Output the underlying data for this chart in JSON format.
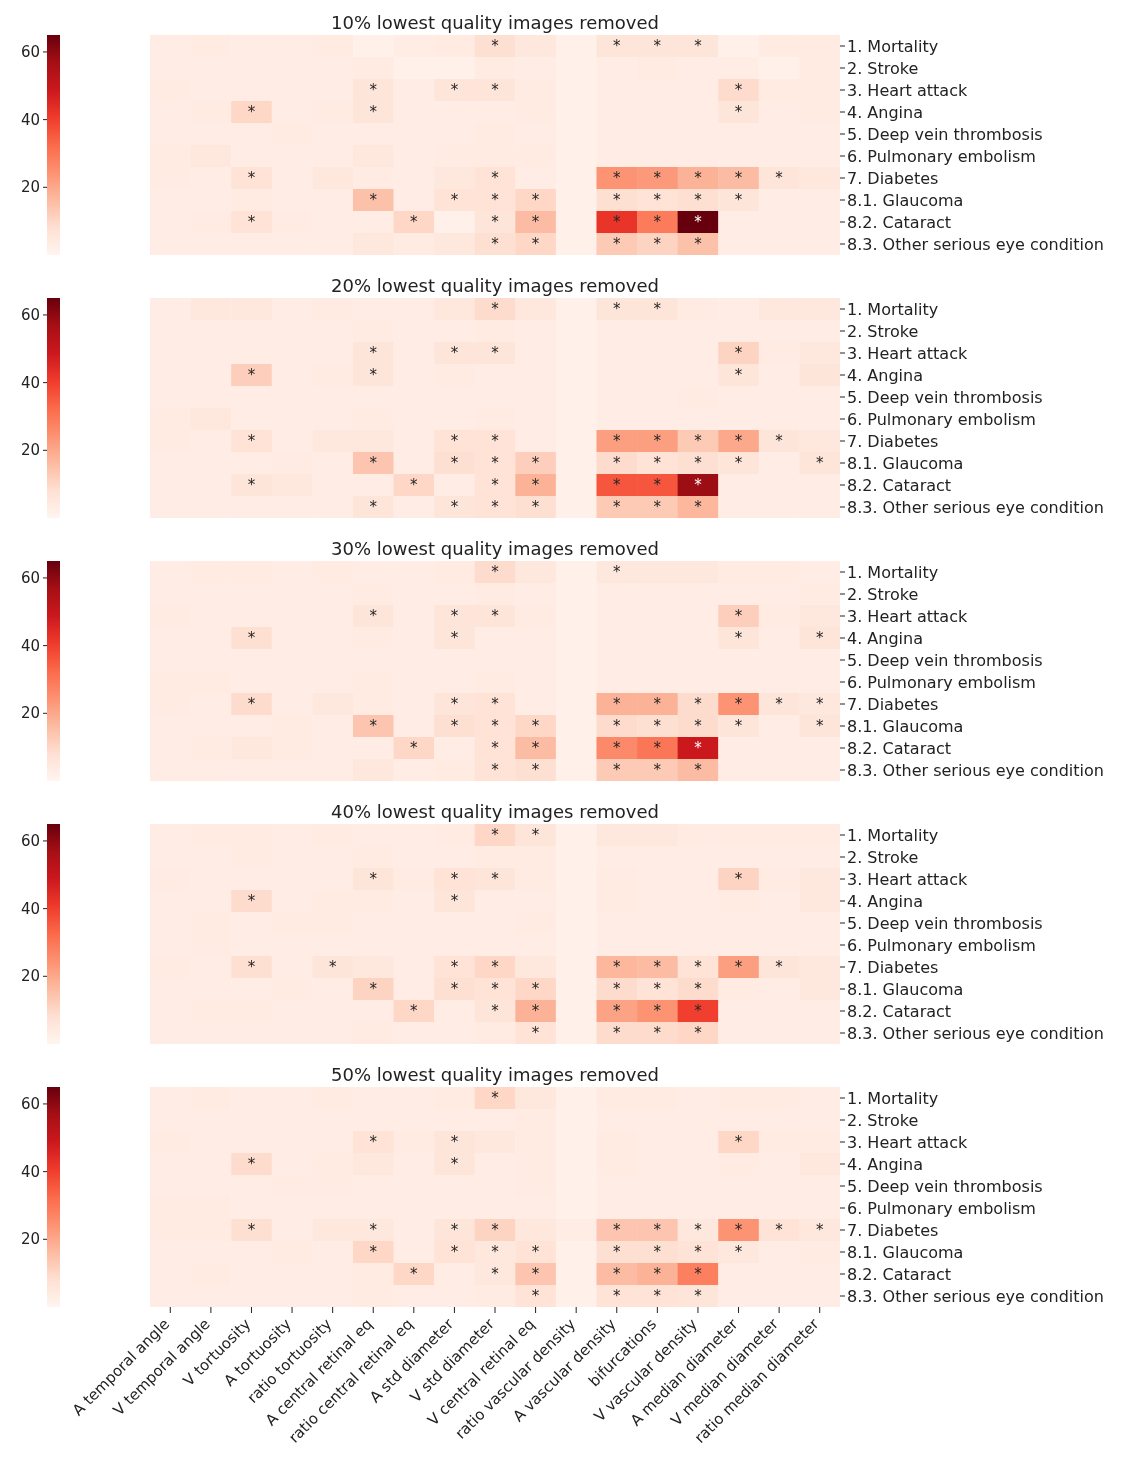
{
  "chart_data": [
    {
      "type": "heatmap",
      "title": "10% lowest quality images removed",
      "tick_labels": "y",
      "categories": [
        null,
        null,
        null,
        null,
        null,
        null,
        null,
        null,
        null,
        null,
        null,
        null,
        null,
        null,
        null,
        null,
        null
      ],
      "y_categories": [
        "1. Mortality",
        "2. Stroke",
        "3. Heart attack",
        "4. Angina",
        "5. Deep vein thrombosis",
        "6. Pulmonary embolism",
        "7. Diabetes",
        "8.1. Glaucoma",
        "8.2. Cataract",
        "8.3. Other serious eye condition"
      ],
      "cells": [
        [
          3,
          4,
          3,
          3,
          4,
          2,
          3,
          4,
          8,
          5,
          2,
          6,
          6,
          6,
          2,
          4,
          4
        ],
        [
          3,
          3,
          3,
          3,
          3,
          4,
          2,
          2,
          4,
          3,
          2,
          3,
          4,
          3,
          3,
          2,
          4
        ],
        [
          4,
          3,
          3,
          3,
          3,
          6,
          3,
          6,
          6,
          4,
          2,
          3,
          3,
          3,
          9,
          4,
          4
        ],
        [
          3,
          4,
          10,
          3,
          4,
          6,
          3,
          3,
          3,
          4,
          2,
          3,
          3,
          3,
          6,
          3,
          4
        ],
        [
          3,
          3,
          3,
          4,
          3,
          3,
          3,
          3,
          4,
          3,
          2,
          3,
          3,
          3,
          3,
          3,
          3
        ],
        [
          4,
          5,
          3,
          3,
          3,
          5,
          3,
          4,
          4,
          4,
          2,
          3,
          3,
          3,
          3,
          3,
          3
        ],
        [
          4,
          3,
          7,
          3,
          5,
          4,
          3,
          5,
          7,
          3,
          2,
          24,
          23,
          18,
          16,
          6,
          5
        ],
        [
          3,
          3,
          4,
          3,
          3,
          15,
          3,
          7,
          7,
          10,
          2,
          8,
          7,
          8,
          6,
          3,
          3
        ],
        [
          3,
          4,
          7,
          4,
          3,
          3,
          10,
          2,
          6,
          16,
          2,
          42,
          29,
          65,
          3,
          3,
          3
        ],
        [
          3,
          3,
          3,
          3,
          3,
          5,
          4,
          5,
          8,
          10,
          2,
          13,
          11,
          15,
          3,
          3,
          3
        ]
      ],
      "cell_labels": [
        [
          null,
          null,
          null,
          null,
          null,
          null,
          null,
          null,
          "*",
          null,
          null,
          "*",
          "*",
          "*",
          null,
          null,
          null
        ],
        [
          null,
          null,
          null,
          null,
          null,
          null,
          null,
          null,
          null,
          null,
          null,
          null,
          null,
          null,
          null,
          null,
          null
        ],
        [
          null,
          null,
          null,
          null,
          null,
          "*",
          null,
          "*",
          "*",
          null,
          null,
          null,
          null,
          null,
          "*",
          null,
          null
        ],
        [
          null,
          null,
          "*",
          null,
          null,
          "*",
          null,
          null,
          null,
          null,
          null,
          null,
          null,
          null,
          "*",
          null,
          null
        ],
        [
          null,
          null,
          null,
          null,
          null,
          null,
          null,
          null,
          null,
          null,
          null,
          null,
          null,
          null,
          null,
          null,
          null
        ],
        [
          null,
          null,
          null,
          null,
          null,
          null,
          null,
          null,
          null,
          null,
          null,
          null,
          null,
          null,
          null,
          null,
          null
        ],
        [
          null,
          null,
          "*",
          null,
          null,
          null,
          null,
          null,
          "*",
          null,
          null,
          "*",
          "*",
          "*",
          "*",
          "*",
          null
        ],
        [
          null,
          null,
          null,
          null,
          null,
          "*",
          null,
          "*",
          "*",
          "*",
          null,
          "*",
          "*",
          "*",
          "*",
          null,
          null
        ],
        [
          null,
          null,
          "*",
          null,
          null,
          null,
          "*",
          null,
          "*",
          "*",
          null,
          "*",
          "*",
          "*",
          null,
          null,
          null
        ],
        [
          null,
          null,
          null,
          null,
          null,
          null,
          null,
          null,
          "*",
          "*",
          null,
          "*",
          "*",
          "*",
          null,
          null,
          null
        ]
      ],
      "clim": [
        0,
        65
      ],
      "cticks": [
        20,
        40,
        60
      ]
    },
    {
      "type": "heatmap",
      "title": "20% lowest quality images removed",
      "tick_labels": "y",
      "categories": [
        null,
        null,
        null,
        null,
        null,
        null,
        null,
        null,
        null,
        null,
        null,
        null,
        null,
        null,
        null,
        null,
        null
      ],
      "y_categories": [
        "1. Mortality",
        "2. Stroke",
        "3. Heart attack",
        "4. Angina",
        "5. Deep vein thrombosis",
        "6. Pulmonary embolism",
        "7. Diabetes",
        "8.1. Glaucoma",
        "8.2. Cataract",
        "8.3. Other serious eye condition"
      ],
      "cells": [
        [
          3,
          5,
          5,
          3,
          4,
          3,
          3,
          5,
          9,
          5,
          2,
          6,
          6,
          4,
          3,
          5,
          5
        ],
        [
          3,
          3,
          3,
          3,
          3,
          4,
          3,
          3,
          4,
          3,
          2,
          3,
          3,
          3,
          3,
          3,
          3
        ],
        [
          3,
          3,
          3,
          3,
          3,
          6,
          3,
          6,
          6,
          3,
          2,
          3,
          3,
          3,
          11,
          4,
          5
        ],
        [
          3,
          3,
          12,
          3,
          4,
          6,
          3,
          4,
          3,
          3,
          2,
          3,
          3,
          3,
          6,
          3,
          6
        ],
        [
          3,
          3,
          3,
          3,
          3,
          3,
          3,
          3,
          3,
          3,
          2,
          3,
          3,
          4,
          3,
          3,
          3
        ],
        [
          4,
          5,
          3,
          3,
          3,
          4,
          3,
          3,
          4,
          3,
          2,
          3,
          3,
          3,
          3,
          3,
          3
        ],
        [
          4,
          3,
          7,
          3,
          5,
          5,
          3,
          7,
          7,
          3,
          2,
          22,
          22,
          13,
          20,
          6,
          5
        ],
        [
          3,
          3,
          3,
          4,
          3,
          14,
          3,
          8,
          7,
          12,
          2,
          9,
          7,
          8,
          6,
          3,
          6
        ],
        [
          3,
          3,
          6,
          5,
          3,
          3,
          10,
          3,
          7,
          18,
          2,
          36,
          36,
          58,
          3,
          3,
          3
        ],
        [
          3,
          3,
          3,
          3,
          3,
          6,
          3,
          6,
          7,
          8,
          2,
          13,
          13,
          17,
          3,
          3,
          3
        ]
      ],
      "cell_labels": [
        [
          null,
          null,
          null,
          null,
          null,
          null,
          null,
          null,
          "*",
          null,
          null,
          "*",
          "*",
          null,
          null,
          null,
          null
        ],
        [
          null,
          null,
          null,
          null,
          null,
          null,
          null,
          null,
          null,
          null,
          null,
          null,
          null,
          null,
          null,
          null,
          null
        ],
        [
          null,
          null,
          null,
          null,
          null,
          "*",
          null,
          "*",
          "*",
          null,
          null,
          null,
          null,
          null,
          "*",
          null,
          null
        ],
        [
          null,
          null,
          "*",
          null,
          null,
          "*",
          null,
          null,
          null,
          null,
          null,
          null,
          null,
          null,
          "*",
          null,
          null
        ],
        [
          null,
          null,
          null,
          null,
          null,
          null,
          null,
          null,
          null,
          null,
          null,
          null,
          null,
          null,
          null,
          null,
          null
        ],
        [
          null,
          null,
          null,
          null,
          null,
          null,
          null,
          null,
          null,
          null,
          null,
          null,
          null,
          null,
          null,
          null,
          null
        ],
        [
          null,
          null,
          "*",
          null,
          null,
          null,
          null,
          "*",
          "*",
          null,
          null,
          "*",
          "*",
          "*",
          "*",
          "*",
          null
        ],
        [
          null,
          null,
          null,
          null,
          null,
          "*",
          null,
          "*",
          "*",
          "*",
          null,
          "*",
          "*",
          "*",
          "*",
          null,
          "*"
        ],
        [
          null,
          null,
          "*",
          null,
          null,
          null,
          "*",
          null,
          "*",
          "*",
          null,
          "*",
          "*",
          "*",
          null,
          null,
          null
        ],
        [
          null,
          null,
          null,
          null,
          null,
          "*",
          null,
          "*",
          "*",
          "*",
          null,
          "*",
          "*",
          "*",
          null,
          null,
          null
        ]
      ],
      "clim": [
        0,
        65
      ],
      "cticks": [
        20,
        40,
        60
      ]
    },
    {
      "type": "heatmap",
      "title": "30% lowest quality images removed",
      "tick_labels": "y",
      "categories": [
        null,
        null,
        null,
        null,
        null,
        null,
        null,
        null,
        null,
        null,
        null,
        null,
        null,
        null,
        null,
        null,
        null
      ],
      "y_categories": [
        "1. Mortality",
        "2. Stroke",
        "3. Heart attack",
        "4. Angina",
        "5. Deep vein thrombosis",
        "6. Pulmonary embolism",
        "7. Diabetes",
        "8.1. Glaucoma",
        "8.2. Cataract",
        "8.3. Other serious eye condition"
      ],
      "cells": [
        [
          3,
          4,
          4,
          3,
          4,
          3,
          3,
          4,
          9,
          5,
          2,
          5,
          5,
          5,
          4,
          4,
          3
        ],
        [
          3,
          3,
          3,
          3,
          3,
          4,
          3,
          3,
          4,
          3,
          2,
          3,
          3,
          3,
          3,
          3,
          4
        ],
        [
          4,
          3,
          3,
          3,
          3,
          6,
          3,
          6,
          6,
          4,
          2,
          3,
          3,
          3,
          12,
          4,
          5
        ],
        [
          3,
          3,
          8,
          3,
          3,
          4,
          3,
          6,
          3,
          3,
          2,
          3,
          3,
          3,
          6,
          3,
          6
        ],
        [
          3,
          3,
          3,
          3,
          3,
          3,
          3,
          3,
          3,
          3,
          2,
          3,
          3,
          3,
          3,
          3,
          3
        ],
        [
          4,
          4,
          3,
          3,
          3,
          4,
          3,
          3,
          4,
          3,
          2,
          3,
          3,
          3,
          3,
          3,
          3
        ],
        [
          4,
          3,
          9,
          3,
          5,
          4,
          3,
          6,
          7,
          3,
          2,
          18,
          18,
          9,
          24,
          6,
          5
        ],
        [
          3,
          3,
          3,
          4,
          3,
          14,
          3,
          8,
          7,
          10,
          2,
          9,
          8,
          9,
          6,
          3,
          6
        ],
        [
          3,
          4,
          5,
          4,
          3,
          3,
          10,
          3,
          7,
          16,
          2,
          26,
          30,
          49,
          3,
          3,
          3
        ],
        [
          3,
          3,
          3,
          3,
          3,
          5,
          3,
          4,
          7,
          8,
          2,
          13,
          13,
          16,
          3,
          3,
          3
        ]
      ],
      "cell_labels": [
        [
          null,
          null,
          null,
          null,
          null,
          null,
          null,
          null,
          "*",
          null,
          null,
          "*",
          null,
          null,
          null,
          null,
          null
        ],
        [
          null,
          null,
          null,
          null,
          null,
          null,
          null,
          null,
          null,
          null,
          null,
          null,
          null,
          null,
          null,
          null,
          null
        ],
        [
          null,
          null,
          null,
          null,
          null,
          "*",
          null,
          "*",
          "*",
          null,
          null,
          null,
          null,
          null,
          "*",
          null,
          null
        ],
        [
          null,
          null,
          "*",
          null,
          null,
          null,
          null,
          "*",
          null,
          null,
          null,
          null,
          null,
          null,
          "*",
          null,
          "*"
        ],
        [
          null,
          null,
          null,
          null,
          null,
          null,
          null,
          null,
          null,
          null,
          null,
          null,
          null,
          null,
          null,
          null,
          null
        ],
        [
          null,
          null,
          null,
          null,
          null,
          null,
          null,
          null,
          null,
          null,
          null,
          null,
          null,
          null,
          null,
          null,
          null
        ],
        [
          null,
          null,
          "*",
          null,
          null,
          null,
          null,
          "*",
          "*",
          null,
          null,
          "*",
          "*",
          "*",
          "*",
          "*",
          "*"
        ],
        [
          null,
          null,
          null,
          null,
          null,
          "*",
          null,
          "*",
          "*",
          "*",
          null,
          "*",
          "*",
          "*",
          "*",
          null,
          "*"
        ],
        [
          null,
          null,
          null,
          null,
          null,
          null,
          "*",
          null,
          "*",
          "*",
          null,
          "*",
          "*",
          "*",
          null,
          null,
          null
        ],
        [
          null,
          null,
          null,
          null,
          null,
          null,
          null,
          null,
          "*",
          "*",
          null,
          "*",
          "*",
          "*",
          null,
          null,
          null
        ]
      ],
      "clim": [
        0,
        65
      ],
      "cticks": [
        20,
        40,
        60
      ]
    },
    {
      "type": "heatmap",
      "title": "40% lowest quality images removed",
      "tick_labels": "y",
      "categories": [
        null,
        null,
        null,
        null,
        null,
        null,
        null,
        null,
        null,
        null,
        null,
        null,
        null,
        null,
        null,
        null,
        null
      ],
      "y_categories": [
        "1. Mortality",
        "2. Stroke",
        "3. Heart attack",
        "4. Angina",
        "5. Deep vein thrombosis",
        "6. Pulmonary embolism",
        "7. Diabetes",
        "8.1. Glaucoma",
        "8.2. Cataract",
        "8.3. Other serious eye condition"
      ],
      "cells": [
        [
          3,
          4,
          4,
          3,
          4,
          3,
          3,
          4,
          10,
          6,
          2,
          5,
          5,
          4,
          4,
          4,
          4
        ],
        [
          3,
          3,
          4,
          3,
          3,
          4,
          3,
          3,
          4,
          4,
          2,
          3,
          3,
          3,
          3,
          3,
          3
        ],
        [
          4,
          3,
          3,
          3,
          3,
          6,
          4,
          7,
          6,
          4,
          2,
          4,
          3,
          3,
          11,
          4,
          5
        ],
        [
          3,
          3,
          9,
          3,
          4,
          4,
          3,
          6,
          3,
          3,
          2,
          4,
          3,
          3,
          4,
          3,
          5
        ],
        [
          3,
          4,
          3,
          4,
          4,
          3,
          3,
          3,
          3,
          4,
          2,
          3,
          3,
          3,
          3,
          3,
          3
        ],
        [
          3,
          4,
          3,
          3,
          3,
          3,
          3,
          3,
          3,
          3,
          2,
          3,
          3,
          3,
          3,
          3,
          3
        ],
        [
          4,
          3,
          8,
          3,
          6,
          5,
          3,
          7,
          10,
          5,
          2,
          17,
          16,
          7,
          22,
          6,
          5
        ],
        [
          3,
          3,
          3,
          4,
          3,
          11,
          3,
          8,
          7,
          10,
          2,
          9,
          7,
          9,
          4,
          3,
          5
        ],
        [
          3,
          4,
          4,
          3,
          3,
          3,
          10,
          3,
          6,
          18,
          2,
          21,
          24,
          40,
          3,
          3,
          3
        ],
        [
          3,
          3,
          3,
          3,
          3,
          4,
          3,
          3,
          4,
          7,
          2,
          9,
          9,
          10,
          3,
          3,
          3
        ]
      ],
      "cell_labels": [
        [
          null,
          null,
          null,
          null,
          null,
          null,
          null,
          null,
          "*",
          "*",
          null,
          null,
          null,
          null,
          null,
          null,
          null
        ],
        [
          null,
          null,
          null,
          null,
          null,
          null,
          null,
          null,
          null,
          null,
          null,
          null,
          null,
          null,
          null,
          null,
          null
        ],
        [
          null,
          null,
          null,
          null,
          null,
          "*",
          null,
          "*",
          "*",
          null,
          null,
          null,
          null,
          null,
          "*",
          null,
          null
        ],
        [
          null,
          null,
          "*",
          null,
          null,
          null,
          null,
          "*",
          null,
          null,
          null,
          null,
          null,
          null,
          null,
          null,
          null
        ],
        [
          null,
          null,
          null,
          null,
          null,
          null,
          null,
          null,
          null,
          null,
          null,
          null,
          null,
          null,
          null,
          null,
          null
        ],
        [
          null,
          null,
          null,
          null,
          null,
          null,
          null,
          null,
          null,
          null,
          null,
          null,
          null,
          null,
          null,
          null,
          null
        ],
        [
          null,
          null,
          "*",
          null,
          "*",
          null,
          null,
          "*",
          "*",
          null,
          null,
          "*",
          "*",
          "*",
          "*",
          "*",
          null
        ],
        [
          null,
          null,
          null,
          null,
          null,
          "*",
          null,
          "*",
          "*",
          "*",
          null,
          "*",
          "*",
          "*",
          null,
          null,
          null
        ],
        [
          null,
          null,
          null,
          null,
          null,
          null,
          "*",
          null,
          "*",
          "*",
          null,
          "*",
          "*",
          "*",
          null,
          null,
          null
        ],
        [
          null,
          null,
          null,
          null,
          null,
          null,
          null,
          null,
          null,
          "*",
          null,
          "*",
          "*",
          "*",
          null,
          null,
          null
        ]
      ],
      "clim": [
        0,
        65
      ],
      "cticks": [
        20,
        40,
        60
      ]
    },
    {
      "type": "heatmap",
      "title": "50% lowest quality images removed",
      "categories": [
        "A temporal angle",
        "V temporal angle",
        "V tortuosity",
        "A tortuosity",
        "ratio tortuosity",
        "A central retinal eq",
        "ratio central retinal eq",
        "A std diameter",
        "V std diameter",
        "V central retinal eq",
        "ratio vascular density",
        "A vascular density",
        "bifurcations",
        "V vascular density",
        "A median diameter",
        "V median diameter",
        "ratio median diameter"
      ],
      "y_categories": [
        "1. Mortality",
        "2. Stroke",
        "3. Heart attack",
        "4. Angina",
        "5. Deep vein thrombosis",
        "6. Pulmonary embolism",
        "7. Diabetes",
        "8.1. Glaucoma",
        "8.2. Cataract",
        "8.3. Other serious eye condition"
      ],
      "cells": [
        [
          3,
          4,
          3,
          3,
          4,
          3,
          3,
          4,
          10,
          5,
          2,
          4,
          4,
          3,
          4,
          4,
          3
        ],
        [
          3,
          3,
          3,
          3,
          3,
          3,
          3,
          3,
          3,
          4,
          2,
          3,
          3,
          3,
          3,
          3,
          3
        ],
        [
          4,
          3,
          3,
          3,
          3,
          7,
          4,
          6,
          5,
          4,
          2,
          4,
          3,
          3,
          10,
          4,
          4
        ],
        [
          3,
          3,
          9,
          3,
          4,
          5,
          3,
          6,
          3,
          4,
          2,
          4,
          3,
          3,
          4,
          3,
          5
        ],
        [
          3,
          3,
          3,
          4,
          4,
          3,
          3,
          3,
          3,
          4,
          2,
          3,
          3,
          3,
          3,
          3,
          3
        ],
        [
          4,
          4,
          3,
          3,
          3,
          3,
          3,
          3,
          3,
          3,
          2,
          3,
          3,
          3,
          3,
          3,
          3
        ],
        [
          4,
          4,
          8,
          3,
          5,
          5,
          3,
          6,
          11,
          5,
          3,
          14,
          14,
          5,
          24,
          7,
          5
        ],
        [
          3,
          3,
          3,
          4,
          3,
          10,
          3,
          7,
          5,
          7,
          2,
          8,
          8,
          7,
          5,
          3,
          4
        ],
        [
          3,
          4,
          3,
          3,
          3,
          4,
          10,
          3,
          5,
          14,
          2,
          16,
          18,
          28,
          3,
          3,
          3
        ],
        [
          3,
          3,
          3,
          3,
          3,
          4,
          3,
          3,
          4,
          7,
          2,
          7,
          7,
          6,
          3,
          3,
          3
        ]
      ],
      "cell_labels": [
        [
          null,
          null,
          null,
          null,
          null,
          null,
          null,
          null,
          "*",
          null,
          null,
          null,
          null,
          null,
          null,
          null,
          null
        ],
        [
          null,
          null,
          null,
          null,
          null,
          null,
          null,
          null,
          null,
          null,
          null,
          null,
          null,
          null,
          null,
          null,
          null
        ],
        [
          null,
          null,
          null,
          null,
          null,
          "*",
          null,
          "*",
          null,
          null,
          null,
          null,
          null,
          null,
          "*",
          null,
          null
        ],
        [
          null,
          null,
          "*",
          null,
          null,
          null,
          null,
          "*",
          null,
          null,
          null,
          null,
          null,
          null,
          null,
          null,
          null
        ],
        [
          null,
          null,
          null,
          null,
          null,
          null,
          null,
          null,
          null,
          null,
          null,
          null,
          null,
          null,
          null,
          null,
          null
        ],
        [
          null,
          null,
          null,
          null,
          null,
          null,
          null,
          null,
          null,
          null,
          null,
          null,
          null,
          null,
          null,
          null,
          null
        ],
        [
          null,
          null,
          "*",
          null,
          null,
          "*",
          null,
          "*",
          "*",
          null,
          null,
          "*",
          "*",
          "*",
          "*",
          "*",
          "*"
        ],
        [
          null,
          null,
          null,
          null,
          null,
          "*",
          null,
          "*",
          "*",
          "*",
          null,
          "*",
          "*",
          "*",
          "*",
          null,
          null
        ],
        [
          null,
          null,
          null,
          null,
          null,
          null,
          "*",
          null,
          "*",
          "*",
          null,
          "*",
          "*",
          "*",
          null,
          null,
          null
        ],
        [
          null,
          null,
          null,
          null,
          null,
          null,
          null,
          null,
          null,
          "*",
          null,
          "*",
          "*",
          "*",
          null,
          null,
          null
        ]
      ],
      "clim": [
        0,
        65
      ],
      "cticks": [
        20,
        40,
        60
      ]
    }
  ]
}
